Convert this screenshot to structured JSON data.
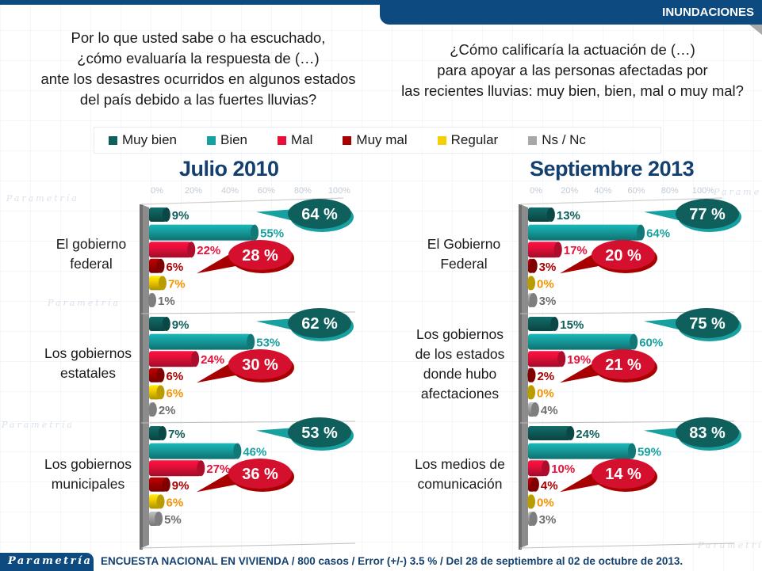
{
  "header": {
    "section_tab": "INUNDACIONES"
  },
  "questions": {
    "left": [
      "Por lo que usted sabe o ha escuchado,",
      "¿cómo evaluaría la respuesta de (…)",
      "ante los desastres ocurridos en algunos estados",
      "del país debido a las fuertes lluvias?"
    ],
    "right": [
      "¿Cómo calificaría la actuación de (…)",
      "para apoyar a las personas afectadas por",
      "las recientes lluvias: muy bien, bien, mal o muy mal?"
    ]
  },
  "legend": [
    {
      "label": "Muy bien",
      "color": "#0f5f5c"
    },
    {
      "label": "Bien",
      "color": "#17a0a0"
    },
    {
      "label": "Mal",
      "color": "#e8103a"
    },
    {
      "label": "Muy mal",
      "color": "#a80000"
    },
    {
      "label": "Regular",
      "color": "#f5d000"
    },
    {
      "label": "Ns / Nc",
      "color": "#a8a8a8"
    }
  ],
  "watermark_text": "Parametría",
  "footer": {
    "logo": "Parametría",
    "text": "ENCUESTA NACIONAL EN VIVIENDA / 800 casos / Error (+/-) 3.5 % / Del 28 de septiembre al 02 de octubre de 2013."
  },
  "chart_data": [
    {
      "type": "bar",
      "orientation": "horizontal",
      "title": "Julio 2010",
      "xlim": [
        0,
        100
      ],
      "x_ticks": [
        "0%",
        "20%",
        "40%",
        "60%",
        "80%",
        "100%"
      ],
      "series_names": [
        "Muy bien",
        "Bien",
        "Mal",
        "Muy mal",
        "Regular",
        "Ns / Nc"
      ],
      "series_colors": [
        "#0f5f5c",
        "#17a0a0",
        "#e8103a",
        "#a80000",
        "#f5d000",
        "#a8a8a8"
      ],
      "label_colors": [
        "#0f5f5c",
        "#17a0a0",
        "#e8103a",
        "#a80000",
        "#f29400",
        "#6e6e6e"
      ],
      "groups": [
        {
          "label": [
            "El gobierno",
            "federal"
          ],
          "values": [
            9,
            55,
            22,
            6,
            7,
            1
          ],
          "positive_total": "64 %",
          "negative_total": "28 %"
        },
        {
          "label": [
            "Los gobiernos",
            "estatales"
          ],
          "values": [
            9,
            53,
            24,
            6,
            6,
            2
          ],
          "positive_total": "62 %",
          "negative_total": "30 %"
        },
        {
          "label": [
            "Los gobiernos",
            "municipales"
          ],
          "values": [
            7,
            46,
            27,
            9,
            6,
            5
          ],
          "positive_total": "53 %",
          "negative_total": "36 %"
        }
      ]
    },
    {
      "type": "bar",
      "orientation": "horizontal",
      "title": "Septiembre 2013",
      "xlim": [
        0,
        100
      ],
      "x_ticks": [
        "0%",
        "20%",
        "40%",
        "60%",
        "80%",
        "100%"
      ],
      "series_names": [
        "Muy bien",
        "Bien",
        "Mal",
        "Muy mal",
        "Regular",
        "Ns / Nc"
      ],
      "series_colors": [
        "#0f5f5c",
        "#17a0a0",
        "#e8103a",
        "#a80000",
        "#f5d000",
        "#a8a8a8"
      ],
      "label_colors": [
        "#0f5f5c",
        "#17a0a0",
        "#e8103a",
        "#a80000",
        "#f29400",
        "#6e6e6e"
      ],
      "groups": [
        {
          "label": [
            "El Gobierno",
            "Federal"
          ],
          "values": [
            13,
            64,
            17,
            3,
            0,
            3
          ],
          "positive_total": "77 %",
          "negative_total": "20 %"
        },
        {
          "label": [
            "Los gobiernos",
            "de los estados",
            "donde hubo",
            "afectaciones"
          ],
          "values": [
            15,
            60,
            19,
            2,
            0,
            4
          ],
          "positive_total": "75 %",
          "negative_total": "21 %"
        },
        {
          "label": [
            "Los medios de",
            "comunicación"
          ],
          "values": [
            24,
            59,
            10,
            4,
            0,
            3
          ],
          "positive_total": "83 %",
          "negative_total": "14 %"
        }
      ]
    }
  ]
}
